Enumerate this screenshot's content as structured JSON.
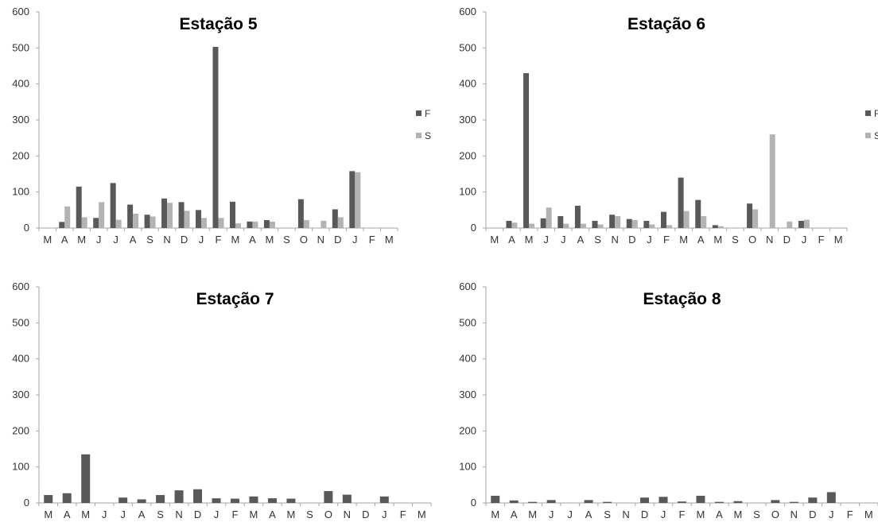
{
  "colors": {
    "F": "#595959",
    "S": "#b3b3b3",
    "axis": "#a6a6a6"
  },
  "chart_data": [
    {
      "type": "bar",
      "title": "Estação 5",
      "categories": [
        "M",
        "A",
        "M",
        "J",
        "J",
        "A",
        "S",
        "N",
        "D",
        "J",
        "F",
        "M",
        "A",
        "M",
        "S",
        "O",
        "N",
        "D",
        "J",
        "F",
        "M"
      ],
      "ylim": [
        0,
        600
      ],
      "yticks": [
        0,
        100,
        200,
        300,
        400,
        500,
        600
      ],
      "legend": "right",
      "series": [
        {
          "name": "F",
          "values": [
            0,
            17,
            115,
            28,
            125,
            65,
            37,
            82,
            72,
            50,
            503,
            73,
            18,
            22,
            0,
            80,
            0,
            52,
            158,
            0,
            0
          ]
        },
        {
          "name": "S",
          "values": [
            0,
            60,
            30,
            72,
            23,
            40,
            32,
            70,
            48,
            28,
            28,
            13,
            18,
            18,
            0,
            22,
            20,
            30,
            155,
            0,
            0
          ]
        }
      ]
    },
    {
      "type": "bar",
      "title": "Estação 6",
      "categories": [
        "M",
        "A",
        "M",
        "J",
        "J",
        "A",
        "S",
        "N",
        "D",
        "J",
        "F",
        "M",
        "A",
        "M",
        "S",
        "O",
        "N",
        "D",
        "J",
        "F",
        "M"
      ],
      "ylim": [
        0,
        600
      ],
      "yticks": [
        0,
        100,
        200,
        300,
        400,
        500,
        600
      ],
      "legend": "right",
      "series": [
        {
          "name": "F",
          "values": [
            0,
            20,
            430,
            27,
            33,
            62,
            20,
            37,
            25,
            20,
            45,
            140,
            78,
            8,
            0,
            68,
            0,
            0,
            20,
            0,
            0
          ]
        },
        {
          "name": "S",
          "values": [
            0,
            15,
            12,
            57,
            12,
            12,
            10,
            33,
            22,
            10,
            8,
            47,
            33,
            5,
            0,
            52,
            260,
            18,
            23,
            0,
            0
          ]
        }
      ]
    },
    {
      "type": "bar",
      "title": "Estação 7",
      "categories": [
        "M",
        "A",
        "M",
        "J",
        "J",
        "A",
        "S",
        "N",
        "D",
        "J",
        "F",
        "M",
        "A",
        "M",
        "S",
        "O",
        "N",
        "D",
        "J",
        "F",
        "M"
      ],
      "ylim": [
        0,
        600
      ],
      "yticks": [
        0,
        100,
        200,
        300,
        400,
        500,
        600
      ],
      "series": [
        {
          "values": [
            22,
            27,
            135,
            0,
            15,
            10,
            22,
            35,
            38,
            13,
            12,
            18,
            13,
            12,
            0,
            33,
            23,
            0,
            18,
            0,
            0
          ]
        }
      ]
    },
    {
      "type": "bar",
      "title": "Estação 8",
      "categories": [
        "M",
        "A",
        "M",
        "J",
        "J",
        "A",
        "S",
        "N",
        "D",
        "J",
        "F",
        "M",
        "A",
        "M",
        "S",
        "O",
        "N",
        "D",
        "J",
        "F",
        "M"
      ],
      "ylim": [
        0,
        600
      ],
      "yticks": [
        0,
        100,
        200,
        300,
        400,
        500,
        600
      ],
      "series": [
        {
          "values": [
            20,
            7,
            3,
            8,
            0,
            8,
            3,
            0,
            15,
            17,
            4,
            20,
            3,
            5,
            0,
            8,
            3,
            15,
            30,
            0,
            0
          ]
        }
      ]
    }
  ]
}
